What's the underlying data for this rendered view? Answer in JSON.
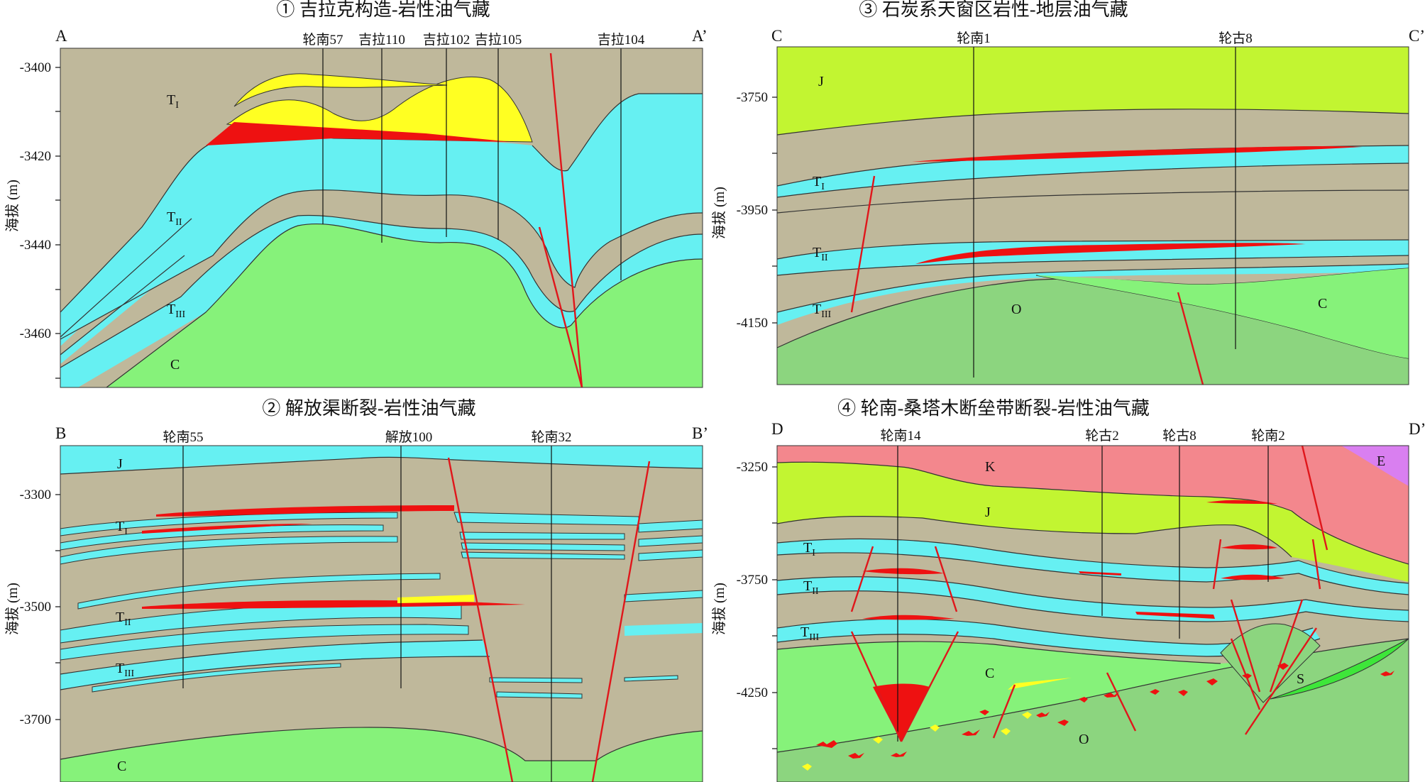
{
  "panels": [
    {
      "title": "① 吉拉克构造-岩性油气藏",
      "corner_left": "A",
      "corner_right": "A’",
      "y_axis": {
        "label": "海拔 (m)",
        "ticks": [
          "-3400",
          "-3420",
          "-3440",
          "-3460"
        ]
      },
      "wells": [
        "轮南57",
        "吉拉110",
        "吉拉102",
        "吉拉105",
        "吉拉104"
      ],
      "layers": {
        "T1": "T",
        "T1_sub": "I",
        "T2": "T",
        "T2_sub": "II",
        "T3": "T",
        "T3_sub": "III",
        "C": "C"
      }
    },
    {
      "title": "② 解放渠断裂-岩性油气藏",
      "corner_left": "B",
      "corner_right": "B’",
      "y_axis": {
        "label": "海拔 (m)",
        "ticks": [
          "-3300",
          "-3500",
          "-3700"
        ]
      },
      "wells": [
        "轮南55",
        "解放100",
        "轮南32"
      ],
      "layers": {
        "J": "J",
        "T1": "T",
        "T1_sub": "I",
        "T2": "T",
        "T2_sub": "II",
        "T3": "T",
        "T3_sub": "III",
        "C": "C"
      }
    },
    {
      "title": "③ 石炭系天窗区岩性-地层油气藏",
      "corner_left": "C",
      "corner_right": "C’",
      "y_axis": {
        "label": "海拔 (m)",
        "ticks": [
          "-3750",
          "-3950",
          "-4150"
        ]
      },
      "wells": [
        "轮南1",
        "轮古8"
      ],
      "layers": {
        "J": "J",
        "T1": "T",
        "T1_sub": "I",
        "T2": "T",
        "T2_sub": "II",
        "T3": "T",
        "T3_sub": "III",
        "O": "O",
        "C": "C"
      }
    },
    {
      "title": "④ 轮南-桑塔木断垒带断裂-岩性油气藏",
      "corner_left": "D",
      "corner_right": "D’",
      "y_axis": {
        "label": "海拔 (m)",
        "ticks": [
          "-3250",
          "-3750",
          "-4250"
        ]
      },
      "wells": [
        "轮南14",
        "轮古2",
        "轮古8",
        "轮南2"
      ],
      "layers": {
        "K": "K",
        "E": "E",
        "J": "J",
        "T1": "T",
        "T1_sub": "I",
        "T2": "T",
        "T2_sub": "II",
        "T3": "T",
        "T3_sub": "III",
        "C": "C",
        "S": "S",
        "O": "O"
      }
    }
  ],
  "colors": {
    "mudstone": "#bfb89b",
    "sand_aqua": "#66f0f2",
    "carboniferous": "#86f27a",
    "ordovician": "#8cd57f",
    "jurassic": "#c2f531",
    "cretaceous": "#f3878d",
    "eogene": "#d97ff0",
    "silurian": "#3ee63a",
    "oil": "#ee1111",
    "gas": "#ffff22",
    "fault": "#e0161b"
  }
}
